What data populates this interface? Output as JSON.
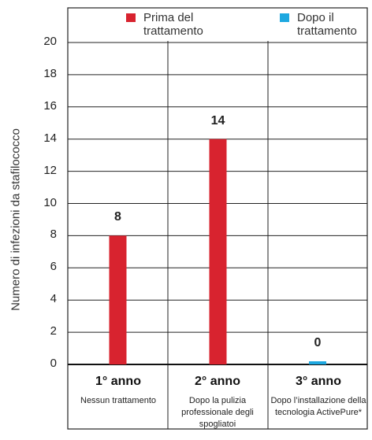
{
  "chart_data": {
    "type": "bar",
    "ylabel": "Numero di infezioni da stafilococco",
    "ylim": [
      0,
      20
    ],
    "yticks": [
      0,
      2,
      4,
      6,
      8,
      10,
      12,
      14,
      16,
      18,
      20
    ],
    "grid": true,
    "legend_position": "top",
    "categories": [
      {
        "year": "1° anno",
        "description": "Nessun trattamento"
      },
      {
        "year": "2° anno",
        "description": "Dopo la pulizia professionale  degli spogliatoi"
      },
      {
        "year": "3° anno",
        "description": "Dopo l’installazione della tecnologia ActivePure*"
      }
    ],
    "values": [
      8,
      14,
      0
    ],
    "value_labels": [
      "8",
      "14",
      "0"
    ],
    "bar_groups": [
      "before",
      "before",
      "after"
    ],
    "legend": [
      {
        "key": "before",
        "label": "Prima del trattamento",
        "color": "#d8232f"
      },
      {
        "key": "after",
        "label": "Dopo il trattamento",
        "color": "#1ea8e0"
      }
    ]
  }
}
